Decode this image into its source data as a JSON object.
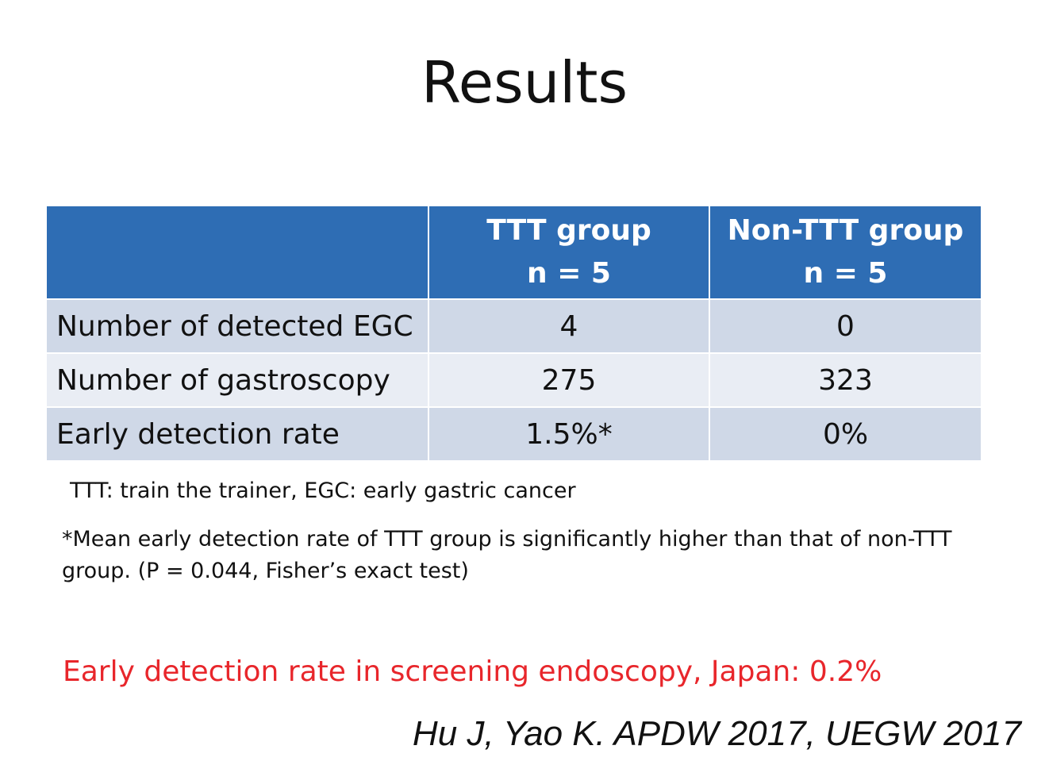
{
  "title": "Results",
  "table": {
    "header": [
      {
        "lines": [
          "TTT group",
          "n = 5"
        ]
      },
      {
        "lines": [
          "Non-TTT group",
          "n = 5"
        ]
      }
    ],
    "rows": [
      [
        "Number of detected EGC",
        "4",
        "0"
      ],
      [
        "Number of gastroscopy",
        "275",
        "323"
      ],
      [
        "Early detection rate",
        "1.5%*",
        "0%"
      ]
    ]
  },
  "abbreviations": "TTT: train the trainer, EGC: early gastric cancer",
  "footnote": "*Mean early detection rate of TTT group is significantly higher than that of non-TTT group. (P = 0.044, Fisher’s exact test)",
  "highlight": "Early detection rate in screening endoscopy, Japan: 0.2%",
  "citation": "Hu J, Yao K. APDW 2017, UEGW 2017"
}
